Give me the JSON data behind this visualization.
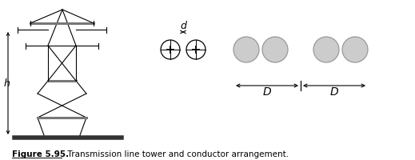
{
  "fig_width": 5.19,
  "fig_height": 2.01,
  "dpi": 100,
  "bg_color": "#ffffff",
  "tower_color": "#000000",
  "h_label": "h",
  "d_label": "d",
  "D_label": "D",
  "figure_label": "Figure 5.95.",
  "figure_caption": "  Transmission line tower and conductor arrangement.",
  "conductor_fill": "#cccccc",
  "conductor_edge": "#999999"
}
